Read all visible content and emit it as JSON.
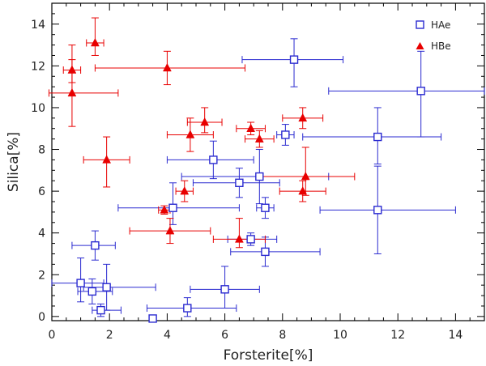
{
  "chart_data": {
    "type": "scatter",
    "title": "",
    "xlabel": "Forsterite[%]",
    "ylabel": "Silica[%]",
    "xlim": [
      0,
      15
    ],
    "ylim": [
      -0.2,
      15
    ],
    "x_ticks": [
      0,
      2,
      4,
      6,
      8,
      10,
      12,
      14
    ],
    "y_ticks": [
      0,
      2,
      4,
      6,
      8,
      10,
      12,
      14
    ],
    "legend_position": "top-right",
    "series": [
      {
        "name": "HAe",
        "marker": "square",
        "color": "#2a2ad0",
        "points": [
          {
            "x": 8.4,
            "y": 12.3,
            "xerr": [
              1.8,
              1.7
            ],
            "yerr": [
              1.3,
              1.0
            ]
          },
          {
            "x": 12.8,
            "y": 10.8,
            "xerr": [
              3.2,
              2.2
            ],
            "yerr": [
              2.2,
              1.9
            ]
          },
          {
            "x": 11.3,
            "y": 8.6,
            "xerr": [
              2.6,
              2.2
            ],
            "yerr": [
              1.3,
              1.4
            ]
          },
          {
            "x": 8.1,
            "y": 8.7,
            "xerr": [
              0.3,
              0.3
            ],
            "yerr": [
              0.5,
              0.5
            ]
          },
          {
            "x": 5.6,
            "y": 7.5,
            "xerr": [
              1.6,
              1.4
            ],
            "yerr": [
              0.9,
              0.9
            ]
          },
          {
            "x": 7.2,
            "y": 6.7,
            "xerr": [
              2.7,
              2.4
            ],
            "yerr": [
              1.3,
              1.3
            ]
          },
          {
            "x": 6.5,
            "y": 6.4,
            "xerr": [
              1.6,
              1.4
            ],
            "yerr": [
              0.7,
              0.7
            ]
          },
          {
            "x": 7.4,
            "y": 5.2,
            "xerr": [
              0.3,
              0.3
            ],
            "yerr": [
              0.5,
              0.5
            ]
          },
          {
            "x": 4.2,
            "y": 5.2,
            "xerr": [
              1.9,
              2.3
            ],
            "yerr": [
              0.8,
              1.2
            ]
          },
          {
            "x": 11.3,
            "y": 5.1,
            "xerr": [
              2.0,
              2.7
            ],
            "yerr": [
              2.1,
              2.1
            ]
          },
          {
            "x": 6.9,
            "y": 3.7,
            "xerr": [
              0.8,
              0.9
            ],
            "yerr": [
              0.3,
              0.3
            ]
          },
          {
            "x": 7.4,
            "y": 3.1,
            "xerr": [
              1.2,
              1.9
            ],
            "yerr": [
              0.7,
              0.7
            ]
          },
          {
            "x": 1.5,
            "y": 3.4,
            "xerr": [
              0.8,
              0.7
            ],
            "yerr": [
              0.7,
              0.7
            ]
          },
          {
            "x": 1.0,
            "y": 1.6,
            "xerr": [
              1.0,
              0.8
            ],
            "yerr": [
              0.9,
              1.2
            ]
          },
          {
            "x": 1.4,
            "y": 1.2,
            "xerr": [
              0.5,
              0.7
            ],
            "yerr": [
              0.6,
              0.6
            ]
          },
          {
            "x": 1.9,
            "y": 1.4,
            "xerr": [
              0.8,
              1.7
            ],
            "yerr": [
              1.1,
              1.1
            ]
          },
          {
            "x": 1.7,
            "y": 0.3,
            "xerr": [
              0.3,
              0.7
            ],
            "yerr": [
              0.3,
              0.3
            ]
          },
          {
            "x": 6.0,
            "y": 1.3,
            "xerr": [
              1.2,
              1.2
            ],
            "yerr": [
              0.9,
              1.1
            ]
          },
          {
            "x": 4.7,
            "y": 0.4,
            "xerr": [
              1.4,
              1.7
            ],
            "yerr": [
              0.4,
              0.5
            ]
          },
          {
            "x": 3.5,
            "y": -0.1,
            "xerr": [
              0.1,
              0.1
            ],
            "yerr": [
              0.0,
              0.0
            ]
          }
        ]
      },
      {
        "name": "HBe",
        "marker": "triangle",
        "color": "#e80000",
        "points": [
          {
            "x": 1.5,
            "y": 13.1,
            "xerr": [
              0.3,
              0.3
            ],
            "yerr": [
              0.6,
              1.2
            ]
          },
          {
            "x": 4.0,
            "y": 11.9,
            "xerr": [
              2.5,
              2.7
            ],
            "yerr": [
              0.8,
              0.8
            ]
          },
          {
            "x": 0.7,
            "y": 11.8,
            "xerr": [
              0.3,
              0.3
            ],
            "yerr": [
              0.6,
              1.2
            ]
          },
          {
            "x": 0.7,
            "y": 10.7,
            "xerr": [
              0.8,
              1.6
            ],
            "yerr": [
              1.6,
              1.6
            ]
          },
          {
            "x": 1.9,
            "y": 7.5,
            "xerr": [
              0.8,
              0.8
            ],
            "yerr": [
              1.3,
              1.1
            ]
          },
          {
            "x": 5.3,
            "y": 9.3,
            "xerr": [
              0.6,
              0.6
            ],
            "yerr": [
              0.5,
              0.7
            ]
          },
          {
            "x": 8.7,
            "y": 9.5,
            "xerr": [
              0.7,
              0.7
            ],
            "yerr": [
              0.5,
              0.5
            ]
          },
          {
            "x": 4.8,
            "y": 8.7,
            "xerr": [
              0.8,
              0.8
            ],
            "yerr": [
              0.8,
              0.8
            ]
          },
          {
            "x": 6.9,
            "y": 9.0,
            "xerr": [
              0.5,
              0.5
            ],
            "yerr": [
              0.3,
              0.3
            ]
          },
          {
            "x": 7.2,
            "y": 8.5,
            "xerr": [
              0.5,
              0.5
            ],
            "yerr": [
              0.4,
              0.4
            ]
          },
          {
            "x": 8.8,
            "y": 6.7,
            "xerr": [
              1.6,
              1.7
            ],
            "yerr": [
              0.9,
              1.4
            ]
          },
          {
            "x": 8.7,
            "y": 6.0,
            "xerr": [
              0.8,
              0.8
            ],
            "yerr": [
              0.5,
              0.5
            ]
          },
          {
            "x": 4.6,
            "y": 6.0,
            "xerr": [
              0.3,
              0.3
            ],
            "yerr": [
              0.5,
              0.5
            ]
          },
          {
            "x": 3.9,
            "y": 5.1,
            "xerr": [
              0.2,
              0.2
            ],
            "yerr": [
              0.2,
              0.2
            ]
          },
          {
            "x": 4.1,
            "y": 4.1,
            "xerr": [
              1.4,
              1.4
            ],
            "yerr": [
              0.6,
              0.6
            ]
          },
          {
            "x": 6.5,
            "y": 3.7,
            "xerr": [
              0.9,
              0.9
            ],
            "yerr": [
              0.4,
              1.0
            ]
          }
        ]
      }
    ]
  }
}
